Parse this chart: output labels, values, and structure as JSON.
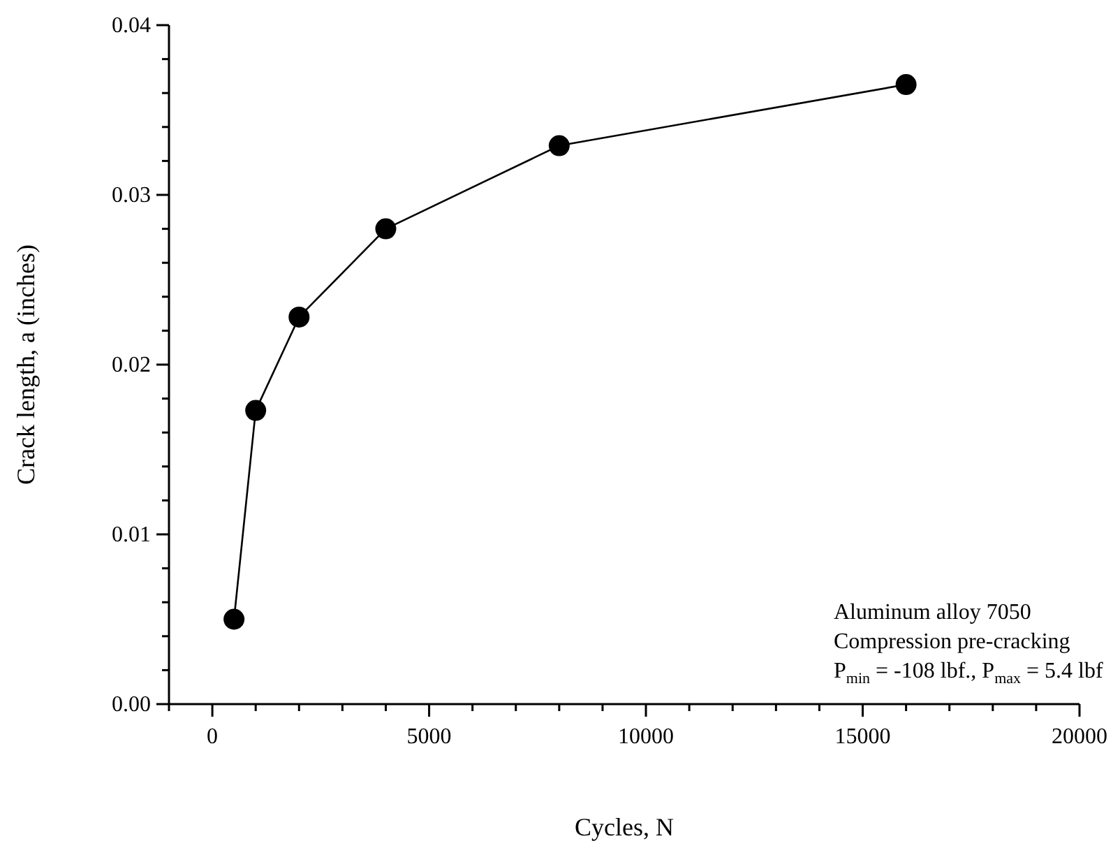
{
  "chart_data": {
    "type": "line",
    "xlabel": "Cycles, N",
    "ylabel": "Crack length, a (inches)",
    "x": [
      500,
      1000,
      2000,
      4000,
      8000,
      16000
    ],
    "series": [
      {
        "color": "#000000",
        "values": [
          0.005,
          0.0173,
          0.0228,
          0.028,
          0.0329,
          0.0365
        ]
      }
    ],
    "xlim": [
      -1000,
      20000
    ],
    "xticks": [
      {
        "value": -1000,
        "label": null
      },
      0,
      {
        "value": 1000,
        "label": null
      },
      {
        "value": 2000,
        "label": null
      },
      {
        "value": 3000,
        "label": null
      },
      {
        "value": 4000,
        "label": null
      },
      5000,
      {
        "value": 6000,
        "label": null
      },
      {
        "value": 7000,
        "label": null
      },
      {
        "value": 8000,
        "label": null
      },
      {
        "value": 9000,
        "label": null
      },
      10000,
      {
        "value": 11000,
        "label": null
      },
      {
        "value": 12000,
        "label": null
      },
      {
        "value": 13000,
        "label": null
      },
      {
        "value": 14000,
        "label": null
      },
      15000,
      {
        "value": 16000,
        "label": null
      },
      {
        "value": 17000,
        "label": null
      },
      {
        "value": 18000,
        "label": null
      },
      {
        "value": 19000,
        "label": null
      },
      20000
    ],
    "ylim": [
      0,
      0.04
    ],
    "yticks": [
      {
        "value": 0,
        "label": "0.00"
      },
      {
        "value": 0.002,
        "label": null
      },
      {
        "value": 0.004,
        "label": null
      },
      {
        "value": 0.006,
        "label": null
      },
      {
        "value": 0.008,
        "label": null
      },
      {
        "value": 0.01,
        "label": "0.01"
      },
      {
        "value": 0.012,
        "label": null
      },
      {
        "value": 0.014,
        "label": null
      },
      {
        "value": 0.016,
        "label": null
      },
      {
        "value": 0.018,
        "label": null
      },
      {
        "value": 0.02,
        "label": "0.02"
      },
      {
        "value": 0.022,
        "label": null
      },
      {
        "value": 0.024,
        "label": null
      },
      {
        "value": 0.026,
        "label": null
      },
      {
        "value": 0.028,
        "label": null
      },
      {
        "value": 0.03,
        "label": "0.03"
      },
      {
        "value": 0.032,
        "label": null
      },
      {
        "value": 0.034,
        "label": null
      },
      {
        "value": 0.036,
        "label": null
      },
      {
        "value": 0.038,
        "label": null
      },
      {
        "value": 0.04,
        "label": "0.04"
      }
    ],
    "annotations": [
      "Aluminum alloy 7050",
      "Compression pre-cracking",
      "P$_{min}$ = -108 lbf., P$_{max}$ = 5.4 lbf"
    ],
    "marker": "circle",
    "line_style": "solid",
    "grid": false,
    "legend": false
  }
}
